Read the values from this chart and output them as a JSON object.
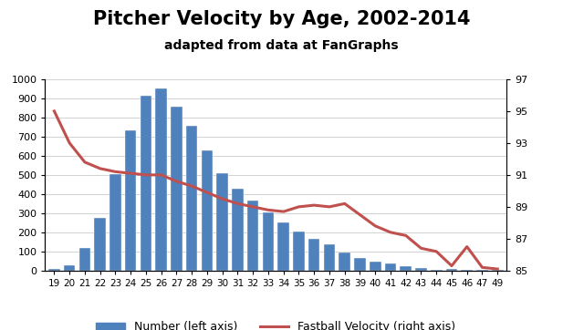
{
  "ages": [
    19,
    20,
    21,
    22,
    23,
    24,
    25,
    26,
    27,
    28,
    29,
    30,
    31,
    32,
    33,
    34,
    35,
    36,
    37,
    38,
    39,
    40,
    41,
    42,
    43,
    44,
    45,
    46,
    47,
    49
  ],
  "counts": [
    10,
    30,
    120,
    275,
    505,
    735,
    915,
    950,
    855,
    755,
    630,
    510,
    430,
    365,
    305,
    250,
    205,
    165,
    135,
    95,
    68,
    45,
    35,
    25,
    15,
    5,
    8,
    5,
    4,
    4
  ],
  "velocities": [
    95.0,
    93.0,
    91.8,
    91.4,
    91.2,
    91.1,
    91.0,
    91.0,
    90.6,
    90.3,
    89.9,
    89.5,
    89.2,
    89.0,
    88.8,
    88.7,
    89.0,
    89.1,
    89.0,
    89.2,
    88.5,
    87.8,
    87.4,
    87.2,
    86.4,
    86.2,
    85.3,
    86.5,
    85.2,
    85.1
  ],
  "bar_color": "#4F81BD",
  "line_color": "#C0504D",
  "title": "Pitcher Velocity by Age, 2002-2014",
  "subtitle": "adapted from data at FanGraphs",
  "ylim_left": [
    0,
    1000
  ],
  "ylim_right": [
    85.0,
    97.0
  ],
  "yticks_left": [
    0,
    100,
    200,
    300,
    400,
    500,
    600,
    700,
    800,
    900,
    1000
  ],
  "yticks_right": [
    85.0,
    87.0,
    89.0,
    91.0,
    93.0,
    95.0,
    97.0
  ],
  "legend_bar_label": "Number (left axis)",
  "legend_line_label": "Fastball Velocity (right axis)",
  "title_fontsize": 15,
  "subtitle_fontsize": 10,
  "background_color": "#ffffff",
  "grid_color": "#C0C0C0"
}
